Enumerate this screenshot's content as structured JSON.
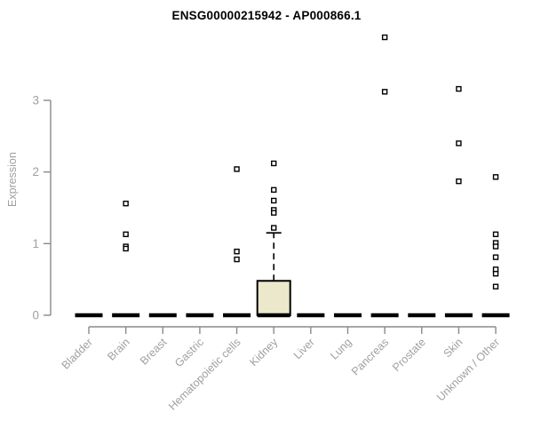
{
  "chart_data": {
    "type": "boxplot",
    "title": "ENSG00000215942 - AP000866.1",
    "ylabel": "Expression",
    "xlabel": "",
    "ylim": [
      0,
      3
    ],
    "yticks": [
      0,
      1,
      2,
      3
    ],
    "grid": false,
    "legend": "none",
    "categories": [
      "Bladder",
      "Brain",
      "Breast",
      "Gastric",
      "Hematopoietic cells",
      "Kidney",
      "Liver",
      "Lung",
      "Pancreas",
      "Prostate",
      "Skin",
      "Unknown / Other"
    ],
    "series": [
      {
        "category": "Bladder",
        "median": 0,
        "q1": 0,
        "q3": 0,
        "whisker_low": 0,
        "whisker_high": 0,
        "outliers": []
      },
      {
        "category": "Brain",
        "median": 0,
        "q1": 0,
        "q3": 0,
        "whisker_low": 0,
        "whisker_high": 0,
        "outliers": [
          1.56,
          1.13,
          0.96,
          0.93
        ]
      },
      {
        "category": "Breast",
        "median": 0,
        "q1": 0,
        "q3": 0,
        "whisker_low": 0,
        "whisker_high": 0,
        "outliers": []
      },
      {
        "category": "Gastric",
        "median": 0,
        "q1": 0,
        "q3": 0,
        "whisker_low": 0,
        "whisker_high": 0,
        "outliers": []
      },
      {
        "category": "Hematopoietic cells",
        "median": 0,
        "q1": 0,
        "q3": 0,
        "whisker_low": 0,
        "whisker_high": 0,
        "outliers": [
          2.04,
          0.89,
          0.78
        ]
      },
      {
        "category": "Kidney",
        "median": 0,
        "q1": 0,
        "q3": 0.48,
        "whisker_low": 0,
        "whisker_high": 1.15,
        "outliers": [
          2.12,
          1.75,
          1.6,
          1.47,
          1.43,
          1.22
        ]
      },
      {
        "category": "Liver",
        "median": 0,
        "q1": 0,
        "q3": 0,
        "whisker_low": 0,
        "whisker_high": 0,
        "outliers": []
      },
      {
        "category": "Lung",
        "median": 0,
        "q1": 0,
        "q3": 0,
        "whisker_low": 0,
        "whisker_high": 0,
        "outliers": []
      },
      {
        "category": "Pancreas",
        "median": 0,
        "q1": 0,
        "q3": 0,
        "whisker_low": 0,
        "whisker_high": 0,
        "outliers": [
          3.88,
          3.12
        ]
      },
      {
        "category": "Prostate",
        "median": 0,
        "q1": 0,
        "q3": 0,
        "whisker_low": 0,
        "whisker_high": 0,
        "outliers": []
      },
      {
        "category": "Skin",
        "median": 0,
        "q1": 0,
        "q3": 0,
        "whisker_low": 0,
        "whisker_high": 0,
        "outliers": [
          3.16,
          2.4,
          1.87
        ]
      },
      {
        "category": "Unknown / Other",
        "median": 0,
        "q1": 0,
        "q3": 0,
        "whisker_low": 0,
        "whisker_high": 0,
        "outliers": [
          1.93,
          1.13,
          1.01,
          0.96,
          0.81,
          0.64,
          0.58,
          0.4
        ]
      }
    ],
    "colors": {
      "title": "#000000",
      "axis": "#8a8a8a",
      "labels": "#a0a0a0",
      "box_fill": "#ece8cb",
      "box_border": "#000000",
      "marker_fill": "#ffffff",
      "marker_stroke": "#000000",
      "median": "#000000"
    }
  }
}
